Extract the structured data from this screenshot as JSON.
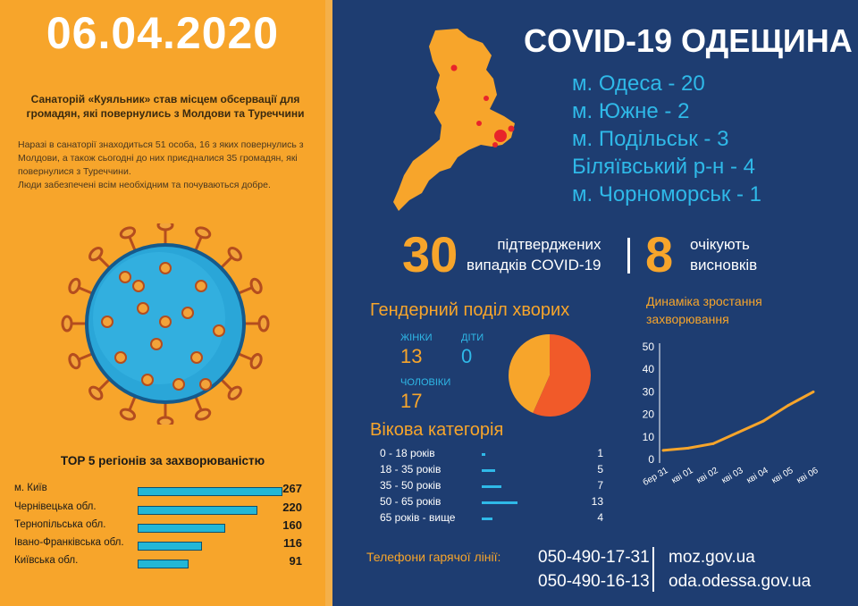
{
  "left": {
    "date": "06.04.2020",
    "subtitle_line1": "Санаторій «Куяльник» став місцем обсервації для",
    "subtitle_line2": "громадян, які повернулись з Молдови та Туреччини",
    "body_line1": "Наразі в санаторії знаходиться 51 особа, 16 з яких повернулись з",
    "body_line2": "Молдови, а також сьогодні до них приєдналися 35 громадян, які",
    "body_line3": "повернулися з Туреччини.",
    "body_line4": "Люди забезпечені всім необхідним та почуваються добре.",
    "top5_title": "TOP 5 регіонів за захворюваністю",
    "regions": [
      {
        "name": "м. Київ",
        "value": "267",
        "amount": 267
      },
      {
        "name": "Чернівецька обл.",
        "value": "220",
        "amount": 220
      },
      {
        "name": "Тернопільська обл.",
        "value": "160",
        "amount": 160
      },
      {
        "name": "Івано-Франківська обл.",
        "value": "116",
        "amount": 116
      },
      {
        "name": "Київська обл.",
        "value": "91",
        "amount": 91
      }
    ]
  },
  "right": {
    "title": "COVID-19 ОДЕЩИНА",
    "cities": [
      "м. Одеса - 20",
      "м. Южне - 2",
      "м. Подільськ - 3",
      "Біляївський р-н - 4",
      "м. Чорноморськ - 1"
    ],
    "confirmed_number": "30",
    "confirmed_line1": "підтверджених",
    "confirmed_line2": "випадків COVID-19",
    "pending_number": "8",
    "pending_line1": "очікують",
    "pending_line2": "висновків",
    "gender_title": "Гендерний поділ хворих",
    "women_label": "ЖІНКИ",
    "women_value": "13",
    "children_label": "ДІТИ",
    "children_value": "0",
    "men_label": "ЧОЛОВІКИ",
    "men_value": "17",
    "age_title": "Вікова категорія",
    "ages": [
      {
        "label": "0 - 18 років",
        "value": "1",
        "amount": 1
      },
      {
        "label": "18 - 35 років",
        "value": "5",
        "amount": 5
      },
      {
        "label": "35 - 50 років",
        "value": "7",
        "amount": 7
      },
      {
        "label": "50 - 65 років",
        "value": "13",
        "amount": 13
      },
      {
        "label": "65 років - вище",
        "value": "4",
        "amount": 4
      }
    ],
    "dynamics_title_line1": "Динаміка зростання",
    "dynamics_title_line2": "захворювання",
    "hotline_label": "Телефони гарячої лінії:",
    "phone1": "050-490-17-31",
    "phone2": "050-490-16-13",
    "site1": "moz.gov.ua",
    "site2": "oda.odessa.gov.ua"
  },
  "colors": {
    "orange": "#f7a52b",
    "navy": "#1e3d71",
    "cyan": "#2fb9e8",
    "pie_men": "#f15a29",
    "pie_women": "#f7a52b",
    "map_dot": "#e8242a"
  },
  "chart_data": [
    {
      "type": "pie",
      "labels": [
        "ЖІНКИ",
        "ЧОЛОВІКИ"
      ],
      "values": [
        13,
        17
      ]
    },
    {
      "type": "line",
      "title": "Динаміка зростання захворювання",
      "x": [
        "бер 31",
        "кві 01",
        "кві 02",
        "кві 03",
        "кві 04",
        "кві 05",
        "кві 06"
      ],
      "series": [
        {
          "values": [
            4,
            5,
            7,
            12,
            17,
            24,
            30
          ]
        }
      ],
      "ylim": [
        0,
        50
      ],
      "yticks": [
        0,
        10,
        20,
        30,
        40,
        50
      ],
      "grid": false
    }
  ]
}
